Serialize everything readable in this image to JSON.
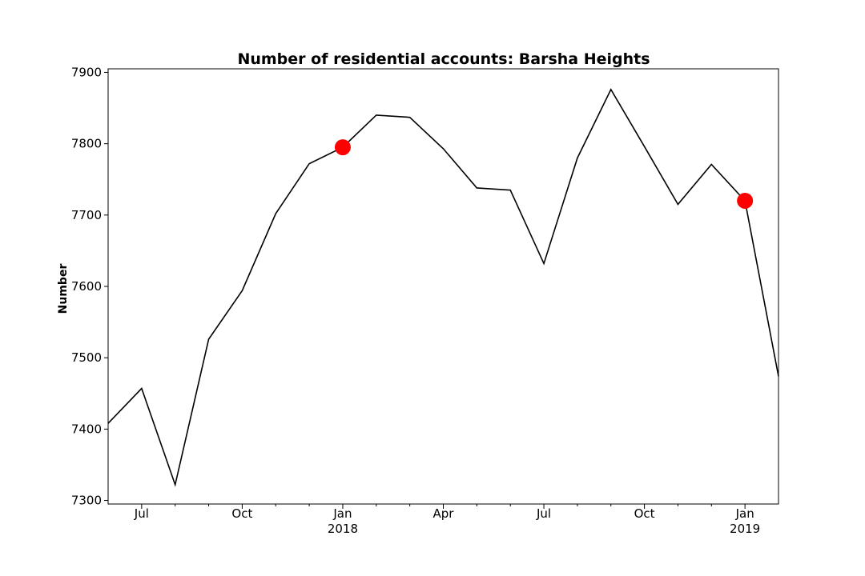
{
  "chart_data": {
    "type": "line",
    "title": "Number of residential accounts: Barsha Heights",
    "xlabel": "",
    "ylabel": "Number",
    "x": [
      "2017-06",
      "2017-07",
      "2017-08",
      "2017-09",
      "2017-10",
      "2017-11",
      "2017-12",
      "2018-01",
      "2018-02",
      "2018-03",
      "2018-04",
      "2018-05",
      "2018-06",
      "2018-07",
      "2018-08",
      "2018-09",
      "2018-10",
      "2018-11",
      "2018-12",
      "2019-01",
      "2019-02"
    ],
    "series": [
      {
        "color": "#000000",
        "values": [
          7408,
          7457,
          7322,
          7526,
          7594,
          7702,
          7772,
          7795,
          7840,
          7837,
          7793,
          7738,
          7735,
          7632,
          7780,
          7876,
          7796,
          7715,
          7771,
          7720,
          7474
        ]
      }
    ],
    "highlights": [
      {
        "x": "2018-01",
        "y": 7795,
        "color": "#ff0000"
      },
      {
        "x": "2019-01",
        "y": 7720,
        "color": "#ff0000"
      }
    ],
    "ylim": [
      7295,
      7905
    ],
    "xlim": [
      "2017-06",
      "2019-02"
    ],
    "yticks": [
      7300,
      7400,
      7500,
      7600,
      7700,
      7800,
      7900
    ],
    "xticks": [
      {
        "x": "2017-07",
        "label": "Jul",
        "sublabel": ""
      },
      {
        "x": "2017-10",
        "label": "Oct",
        "sublabel": ""
      },
      {
        "x": "2018-01",
        "label": "Jan",
        "sublabel": "2018"
      },
      {
        "x": "2018-04",
        "label": "Apr",
        "sublabel": ""
      },
      {
        "x": "2018-07",
        "label": "Jul",
        "sublabel": ""
      },
      {
        "x": "2018-10",
        "label": "Oct",
        "sublabel": ""
      },
      {
        "x": "2019-01",
        "label": "Jan",
        "sublabel": "2019"
      }
    ],
    "minor_xticks": [
      "2017-08",
      "2017-09",
      "2017-11",
      "2017-12",
      "2018-02",
      "2018-03",
      "2018-05",
      "2018-06",
      "2018-08",
      "2018-09",
      "2018-11",
      "2018-12"
    ],
    "grid": false,
    "legend": "none"
  }
}
